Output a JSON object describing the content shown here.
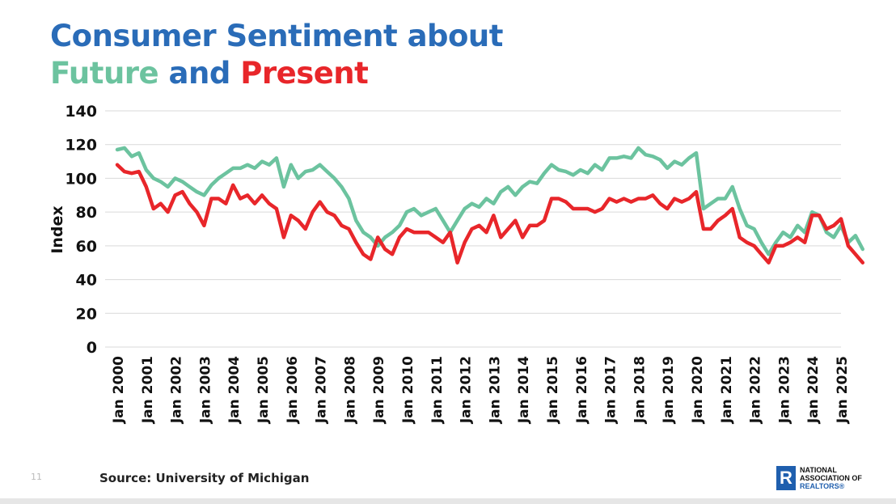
{
  "title": {
    "line1": "Consumer Sentiment about",
    "future": "Future",
    "and": "and",
    "present": "Present"
  },
  "footer": {
    "page_number": "11",
    "source": "Source: University of Michigan",
    "logo_text": [
      "NATIONAL",
      "ASSOCIATION OF",
      "REALTORS®"
    ]
  },
  "colors": {
    "title_blue": "#2a6cb8",
    "future": "#6cc39f",
    "present": "#e8262a"
  },
  "chart_data": {
    "type": "line",
    "title": "",
    "xlabel": "",
    "ylabel": "Index",
    "ylim": [
      0,
      140
    ],
    "yticks": [
      0,
      20,
      40,
      60,
      80,
      100,
      120,
      140
    ],
    "grid": true,
    "legend": "none (series identified by title colors)",
    "xtick_labels": [
      "Jan 2000",
      "Jan 2001",
      "Jan 2002",
      "Jan 2003",
      "Jan 2004",
      "Jan 2005",
      "Jan 2006",
      "Jan 2007",
      "Jan 2008",
      "Jan 2009",
      "Jan 2010",
      "Jan 2011",
      "Jan 2012",
      "Jan 2013",
      "Jan 2014",
      "Jan 2015",
      "Jan 2016",
      "Jan 2017",
      "Jan 2018",
      "Jan 2019",
      "Jan 2020",
      "Jan 2021",
      "Jan 2022",
      "Jan 2023",
      "Jan 2024",
      "Jan 2025"
    ],
    "x": [
      "2000-01",
      "2000-04",
      "2000-07",
      "2000-10",
      "2001-01",
      "2001-04",
      "2001-07",
      "2001-10",
      "2002-01",
      "2002-04",
      "2002-07",
      "2002-10",
      "2003-01",
      "2003-04",
      "2003-07",
      "2003-10",
      "2004-01",
      "2004-04",
      "2004-07",
      "2004-10",
      "2005-01",
      "2005-04",
      "2005-07",
      "2005-10",
      "2006-01",
      "2006-04",
      "2006-07",
      "2006-10",
      "2007-01",
      "2007-04",
      "2007-07",
      "2007-10",
      "2008-01",
      "2008-04",
      "2008-07",
      "2008-10",
      "2009-01",
      "2009-04",
      "2009-07",
      "2009-10",
      "2010-01",
      "2010-04",
      "2010-07",
      "2010-10",
      "2011-01",
      "2011-04",
      "2011-07",
      "2011-10",
      "2012-01",
      "2012-04",
      "2012-07",
      "2012-10",
      "2013-01",
      "2013-04",
      "2013-07",
      "2013-10",
      "2014-01",
      "2014-04",
      "2014-07",
      "2014-10",
      "2015-01",
      "2015-04",
      "2015-07",
      "2015-10",
      "2016-01",
      "2016-04",
      "2016-07",
      "2016-10",
      "2017-01",
      "2017-04",
      "2017-07",
      "2017-10",
      "2018-01",
      "2018-04",
      "2018-07",
      "2018-10",
      "2019-01",
      "2019-04",
      "2019-07",
      "2019-10",
      "2020-01",
      "2020-04",
      "2020-07",
      "2020-10",
      "2021-01",
      "2021-04",
      "2021-07",
      "2021-10",
      "2022-01",
      "2022-04",
      "2022-07",
      "2022-10",
      "2023-01",
      "2023-04",
      "2023-07",
      "2023-10",
      "2024-01",
      "2024-04",
      "2024-07",
      "2024-10",
      "2025-01",
      "2025-04",
      "2025-07",
      "2025-10"
    ],
    "series": [
      {
        "key": "future",
        "color": "#6cc39f",
        "values": [
          117,
          118,
          113,
          115,
          105,
          100,
          98,
          95,
          100,
          98,
          95,
          92,
          90,
          96,
          100,
          103,
          106,
          106,
          108,
          106,
          110,
          108,
          112,
          95,
          108,
          100,
          104,
          105,
          108,
          104,
          100,
          95,
          88,
          75,
          68,
          65,
          60,
          65,
          68,
          72,
          80,
          82,
          78,
          80,
          82,
          75,
          68,
          75,
          82,
          85,
          83,
          88,
          85,
          92,
          95,
          90,
          95,
          98,
          97,
          103,
          108,
          105,
          104,
          102,
          105,
          103,
          108,
          105,
          112,
          112,
          113,
          112,
          118,
          114,
          113,
          111,
          106,
          110,
          108,
          112,
          115,
          82,
          85,
          88,
          88,
          95,
          82,
          72,
          70,
          62,
          55,
          62,
          68,
          65,
          72,
          68,
          80,
          78,
          68,
          65,
          72,
          62,
          66,
          58
        ]
      },
      {
        "key": "present",
        "color": "#e8262a",
        "values": [
          108,
          104,
          103,
          104,
          95,
          82,
          85,
          80,
          90,
          92,
          85,
          80,
          72,
          88,
          88,
          85,
          96,
          88,
          90,
          85,
          90,
          85,
          82,
          65,
          78,
          75,
          70,
          80,
          86,
          80,
          78,
          72,
          70,
          62,
          55,
          52,
          65,
          58,
          55,
          65,
          70,
          68,
          68,
          68,
          65,
          62,
          68,
          50,
          62,
          70,
          72,
          68,
          78,
          65,
          70,
          75,
          65,
          72,
          72,
          75,
          88,
          88,
          86,
          82,
          82,
          82,
          80,
          82,
          88,
          86,
          88,
          86,
          88,
          88,
          90,
          85,
          82,
          88,
          86,
          88,
          92,
          70,
          70,
          75,
          78,
          82,
          65,
          62,
          60,
          55,
          50,
          60,
          60,
          62,
          65,
          62,
          78,
          78,
          70,
          72,
          76,
          60,
          55,
          50
        ]
      }
    ]
  }
}
